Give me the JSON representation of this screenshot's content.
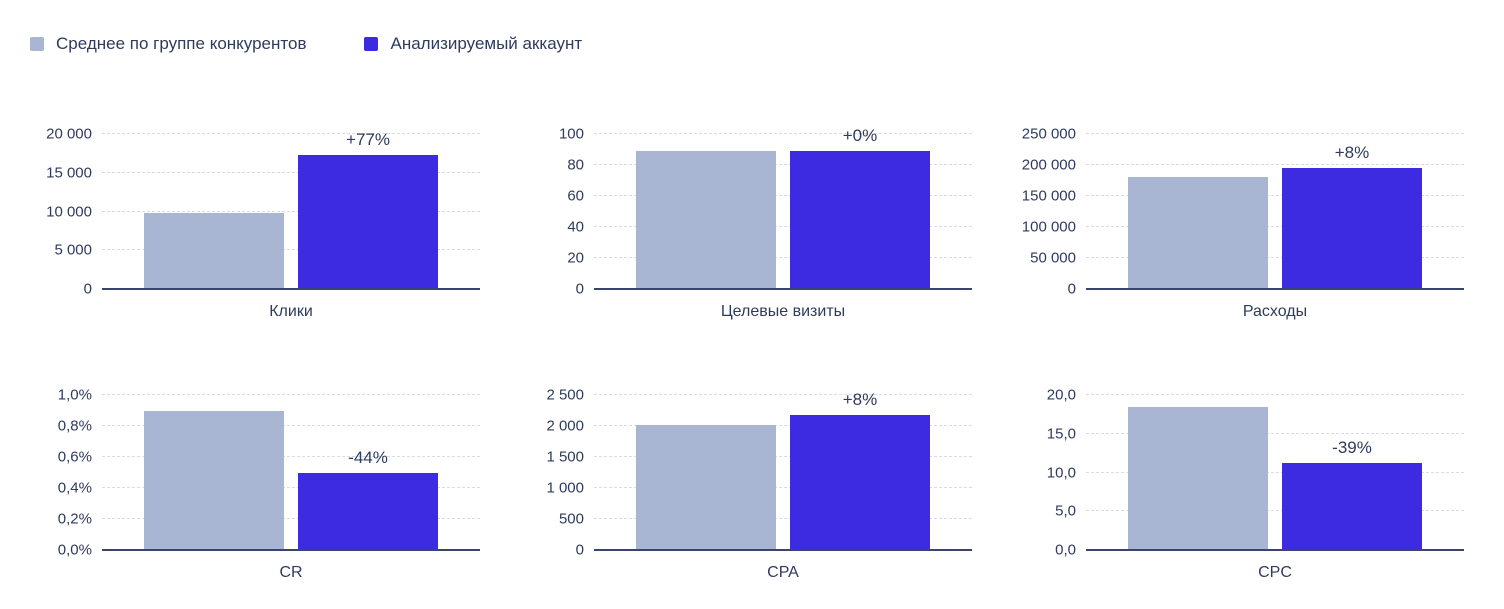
{
  "legend": {
    "position": "top-left",
    "items": [
      {
        "label": "Среднее по группе конкурентов",
        "color": "#a9b6d3"
      },
      {
        "label": "Анализируемый аккаунт",
        "color": "#3c2be0"
      }
    ]
  },
  "chart_data": [
    {
      "type": "bar",
      "title": "Клики",
      "categories": [
        "Среднее по группе конкурентов",
        "Анализируемый аккаунт"
      ],
      "values": [
        9800,
        17300
      ],
      "delta_label": "+77%",
      "ylim": [
        0,
        20000
      ],
      "ytick_labels": [
        "0",
        "5 000",
        "10 000",
        "15 000",
        "20 000"
      ],
      "grid": true
    },
    {
      "type": "bar",
      "title": "Целевые визиты",
      "categories": [
        "Среднее по группе конкурентов",
        "Анализируемый аккаунт"
      ],
      "values": [
        89,
        89
      ],
      "delta_label": "+0%",
      "ylim": [
        0,
        100
      ],
      "ytick_labels": [
        "0",
        "20",
        "40",
        "60",
        "80",
        "100"
      ],
      "grid": true
    },
    {
      "type": "bar",
      "title": "Расходы",
      "categories": [
        "Среднее по группе конкурентов",
        "Анализируемый аккаунт"
      ],
      "values": [
        180000,
        195000
      ],
      "delta_label": "+8%",
      "ylim": [
        0,
        250000
      ],
      "ytick_labels": [
        "0",
        "50 000",
        "100 000",
        "150 000",
        "200 000",
        "250 000"
      ],
      "grid": true
    },
    {
      "type": "bar",
      "title": "CR",
      "categories": [
        "Среднее по группе конкурентов",
        "Анализируемый аккаунт"
      ],
      "values": [
        0.9,
        0.5
      ],
      "delta_label": "-44%",
      "ylim": [
        0,
        1
      ],
      "ytick_labels": [
        "0,0%",
        "0,2%",
        "0,4%",
        "0,6%",
        "0,8%",
        "1,0%"
      ],
      "grid": true
    },
    {
      "type": "bar",
      "title": "CPA",
      "categories": [
        "Среднее по группе конкурентов",
        "Анализируемый аккаунт"
      ],
      "values": [
        2020,
        2180
      ],
      "delta_label": "+8%",
      "ylim": [
        0,
        2500
      ],
      "ytick_labels": [
        "0",
        "500",
        "1 000",
        "1 500",
        "2 000",
        "2 500"
      ],
      "grid": true
    },
    {
      "type": "bar",
      "title": "CPC",
      "categories": [
        "Среднее по группе конкурентов",
        "Анализируемый аккаунт"
      ],
      "values": [
        18.4,
        11.2
      ],
      "delta_label": "-39%",
      "ylim": [
        0,
        20
      ],
      "ytick_labels": [
        "0,0",
        "5,0",
        "10,0",
        "15,0",
        "20,0"
      ],
      "grid": true
    }
  ]
}
